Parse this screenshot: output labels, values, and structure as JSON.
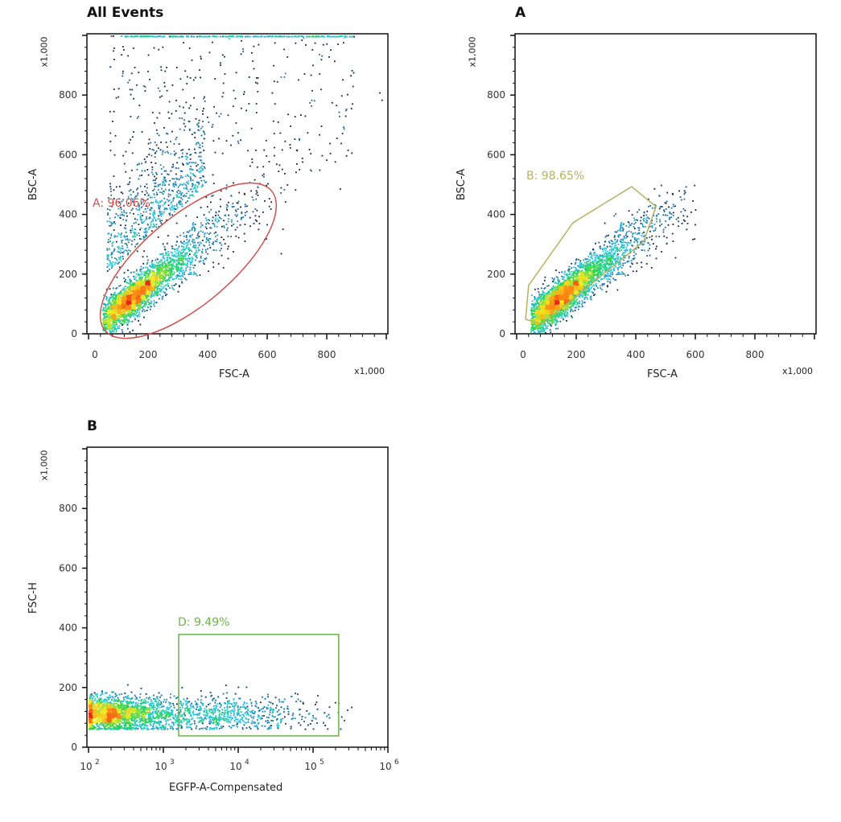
{
  "chart_data": [
    {
      "type": "scatter",
      "title": "All Events",
      "xlabel": "FSC-A",
      "ylabel": "BSC-A",
      "x_multiplier": "x1,000",
      "y_multiplier": "x1,000",
      "xlim": [
        0,
        1000
      ],
      "ylim": [
        0,
        1000
      ],
      "x_scale": "linear",
      "y_scale": "linear",
      "x_ticks": [
        "0",
        "200",
        "400",
        "600",
        "800"
      ],
      "y_ticks": [
        "0",
        "200",
        "400",
        "600",
        "800"
      ],
      "coloring": "density (jet)",
      "grid": false,
      "gate": {
        "label": "A: 96.06%",
        "shape": "ellipse",
        "color": "#d0504f",
        "center": [
          335,
          245
        ],
        "semi_axes": [
          365,
          149
        ],
        "angle_deg": 40
      }
    },
    {
      "type": "scatter",
      "title": "A",
      "xlabel": "FSC-A",
      "ylabel": "BSC-A",
      "x_multiplier": "x1,000",
      "y_multiplier": "x1,000",
      "xlim": [
        0,
        1000
      ],
      "ylim": [
        0,
        1000
      ],
      "x_scale": "linear",
      "y_scale": "linear",
      "x_ticks": [
        "0",
        "200",
        "400",
        "600",
        "800"
      ],
      "y_ticks": [
        "0",
        "200",
        "400",
        "600",
        "800"
      ],
      "coloring": "density (jet)",
      "grid": false,
      "gate": {
        "label": "B: 98.65%",
        "shape": "polygon",
        "color": "#b5b260",
        "vertices": [
          [
            40,
            162
          ],
          [
            30,
            49
          ],
          [
            84,
            32
          ],
          [
            427,
            310
          ],
          [
            468,
            426
          ],
          [
            386,
            493
          ],
          [
            189,
            372
          ]
        ]
      }
    },
    {
      "type": "scatter",
      "title": "B",
      "xlabel": "EGFP-A-Compensated",
      "ylabel": "FSC-H",
      "y_multiplier": "x1,000",
      "xlim": [
        100,
        1000000
      ],
      "ylim": [
        0,
        1000
      ],
      "x_scale": "log",
      "y_scale": "linear",
      "x_ticks": [
        {
          "base": "10",
          "exp": "2"
        },
        {
          "base": "10",
          "exp": "3"
        },
        {
          "base": "10",
          "exp": "4"
        },
        {
          "base": "10",
          "exp": "5"
        },
        {
          "base": "10",
          "exp": "6"
        }
      ],
      "y_ticks": [
        "0",
        "200",
        "400",
        "600",
        "800"
      ],
      "coloring": "density (jet)",
      "grid": false,
      "gate": {
        "label": "D: 9.49%",
        "shape": "rectangle",
        "color": "#6db34a",
        "x_range": [
          1600,
          220000
        ],
        "y_range": [
          38,
          378
        ]
      }
    }
  ]
}
